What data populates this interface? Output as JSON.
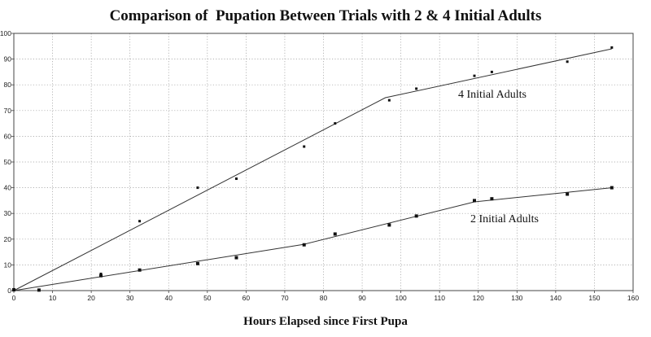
{
  "chart_data": {
    "type": "scatter",
    "title": "Comparison of  Pupation Between Trials with 2 & 4 Initial Adults",
    "xlabel": "Hours Elapsed since First Pupa",
    "ylabel": "",
    "xlim": [
      0,
      160
    ],
    "ylim": [
      0,
      100
    ],
    "x_ticks": [
      0,
      10,
      20,
      30,
      40,
      50,
      60,
      70,
      80,
      90,
      100,
      110,
      120,
      130,
      140,
      150,
      160
    ],
    "y_ticks": [
      0,
      10,
      20,
      30,
      40,
      50,
      60,
      70,
      80,
      90,
      100
    ],
    "grid": true,
    "grid_style": "dotted",
    "colors": {
      "points": "#111111",
      "lines": "#333333",
      "grid": "#9a9a9a",
      "axis": "#444444"
    },
    "series": [
      {
        "name": "4 Initial Adults",
        "points": [
          {
            "x": 0,
            "y": 0.5
          },
          {
            "x": 6.5,
            "y": 0.3
          },
          {
            "x": 22.5,
            "y": 6.5
          },
          {
            "x": 32.5,
            "y": 27
          },
          {
            "x": 47.5,
            "y": 40
          },
          {
            "x": 57.5,
            "y": 43.5
          },
          {
            "x": 75,
            "y": 56
          },
          {
            "x": 83,
            "y": 65
          },
          {
            "x": 97,
            "y": 74
          },
          {
            "x": 104,
            "y": 78.5
          },
          {
            "x": 119,
            "y": 83.5
          },
          {
            "x": 123.5,
            "y": 85
          },
          {
            "x": 143,
            "y": 89
          },
          {
            "x": 154.5,
            "y": 94.5
          }
        ],
        "trend": [
          {
            "x": 0,
            "y": 0
          },
          {
            "x": 96,
            "y": 75
          },
          {
            "x": 154.5,
            "y": 94
          }
        ]
      },
      {
        "name": "2 Initial Adults",
        "points": [
          {
            "x": 0,
            "y": 0.3
          },
          {
            "x": 6.5,
            "y": 0.2
          },
          {
            "x": 22.5,
            "y": 5.8
          },
          {
            "x": 32.5,
            "y": 8
          },
          {
            "x": 47.5,
            "y": 10.5
          },
          {
            "x": 57.5,
            "y": 12.8
          },
          {
            "x": 75,
            "y": 17.8
          },
          {
            "x": 83,
            "y": 22
          },
          {
            "x": 97,
            "y": 25.5
          },
          {
            "x": 104,
            "y": 29
          },
          {
            "x": 119,
            "y": 35
          },
          {
            "x": 123.5,
            "y": 35.7
          },
          {
            "x": 143,
            "y": 37.5
          },
          {
            "x": 154.5,
            "y": 40
          }
        ],
        "trend": [
          {
            "x": 0,
            "y": 0
          },
          {
            "x": 75,
            "y": 18
          },
          {
            "x": 119,
            "y": 34.5
          },
          {
            "x": 154.5,
            "y": 40
          }
        ]
      }
    ]
  }
}
